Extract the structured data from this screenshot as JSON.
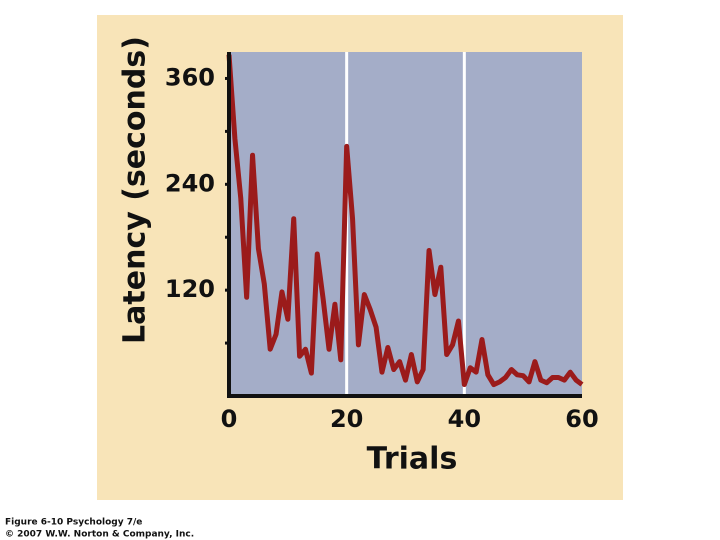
{
  "chart_data": {
    "type": "line",
    "ylabel": "Latency (seconds)",
    "xlabel": "Trials",
    "x": [
      0,
      1,
      2,
      3,
      4,
      5,
      6,
      7,
      8,
      9,
      10,
      11,
      12,
      13,
      14,
      15,
      16,
      17,
      18,
      19,
      20,
      21,
      22,
      23,
      24,
      25,
      26,
      27,
      28,
      29,
      30,
      31,
      32,
      33,
      34,
      35,
      36,
      37,
      38,
      39,
      40,
      41,
      42,
      43,
      44,
      45,
      46,
      47,
      48,
      49,
      50,
      51,
      52,
      53,
      54,
      55,
      56,
      57,
      58,
      59,
      60
    ],
    "series": [
      {
        "color": "#9b1b1b",
        "values": [
          387,
          292,
          224,
          112,
          273,
          167,
          127,
          53,
          70,
          118,
          87,
          201,
          45,
          53,
          26,
          161,
          110,
          53,
          104,
          41,
          283,
          201,
          58,
          115,
          98,
          78,
          27,
          55,
          30,
          39,
          18,
          47,
          16,
          30,
          165,
          115,
          146,
          47,
          58,
          85,
          13,
          32,
          27,
          64,
          24,
          13,
          16,
          21,
          30,
          24,
          23,
          16,
          39,
          18,
          15,
          21,
          21,
          18,
          27,
          18,
          13
        ]
      }
    ],
    "xlim": [
      0,
      60
    ],
    "xticks": [
      0,
      20,
      40,
      60
    ],
    "ylim": [
      0,
      390
    ],
    "yticks": [
      120,
      240,
      360
    ],
    "minor_yticks": [
      60,
      180,
      300
    ],
    "grid": true,
    "footer": [
      "Figure 6-10 Psychology 7/e",
      "© 2007 W.W. Norton & Company, Inc."
    ]
  }
}
